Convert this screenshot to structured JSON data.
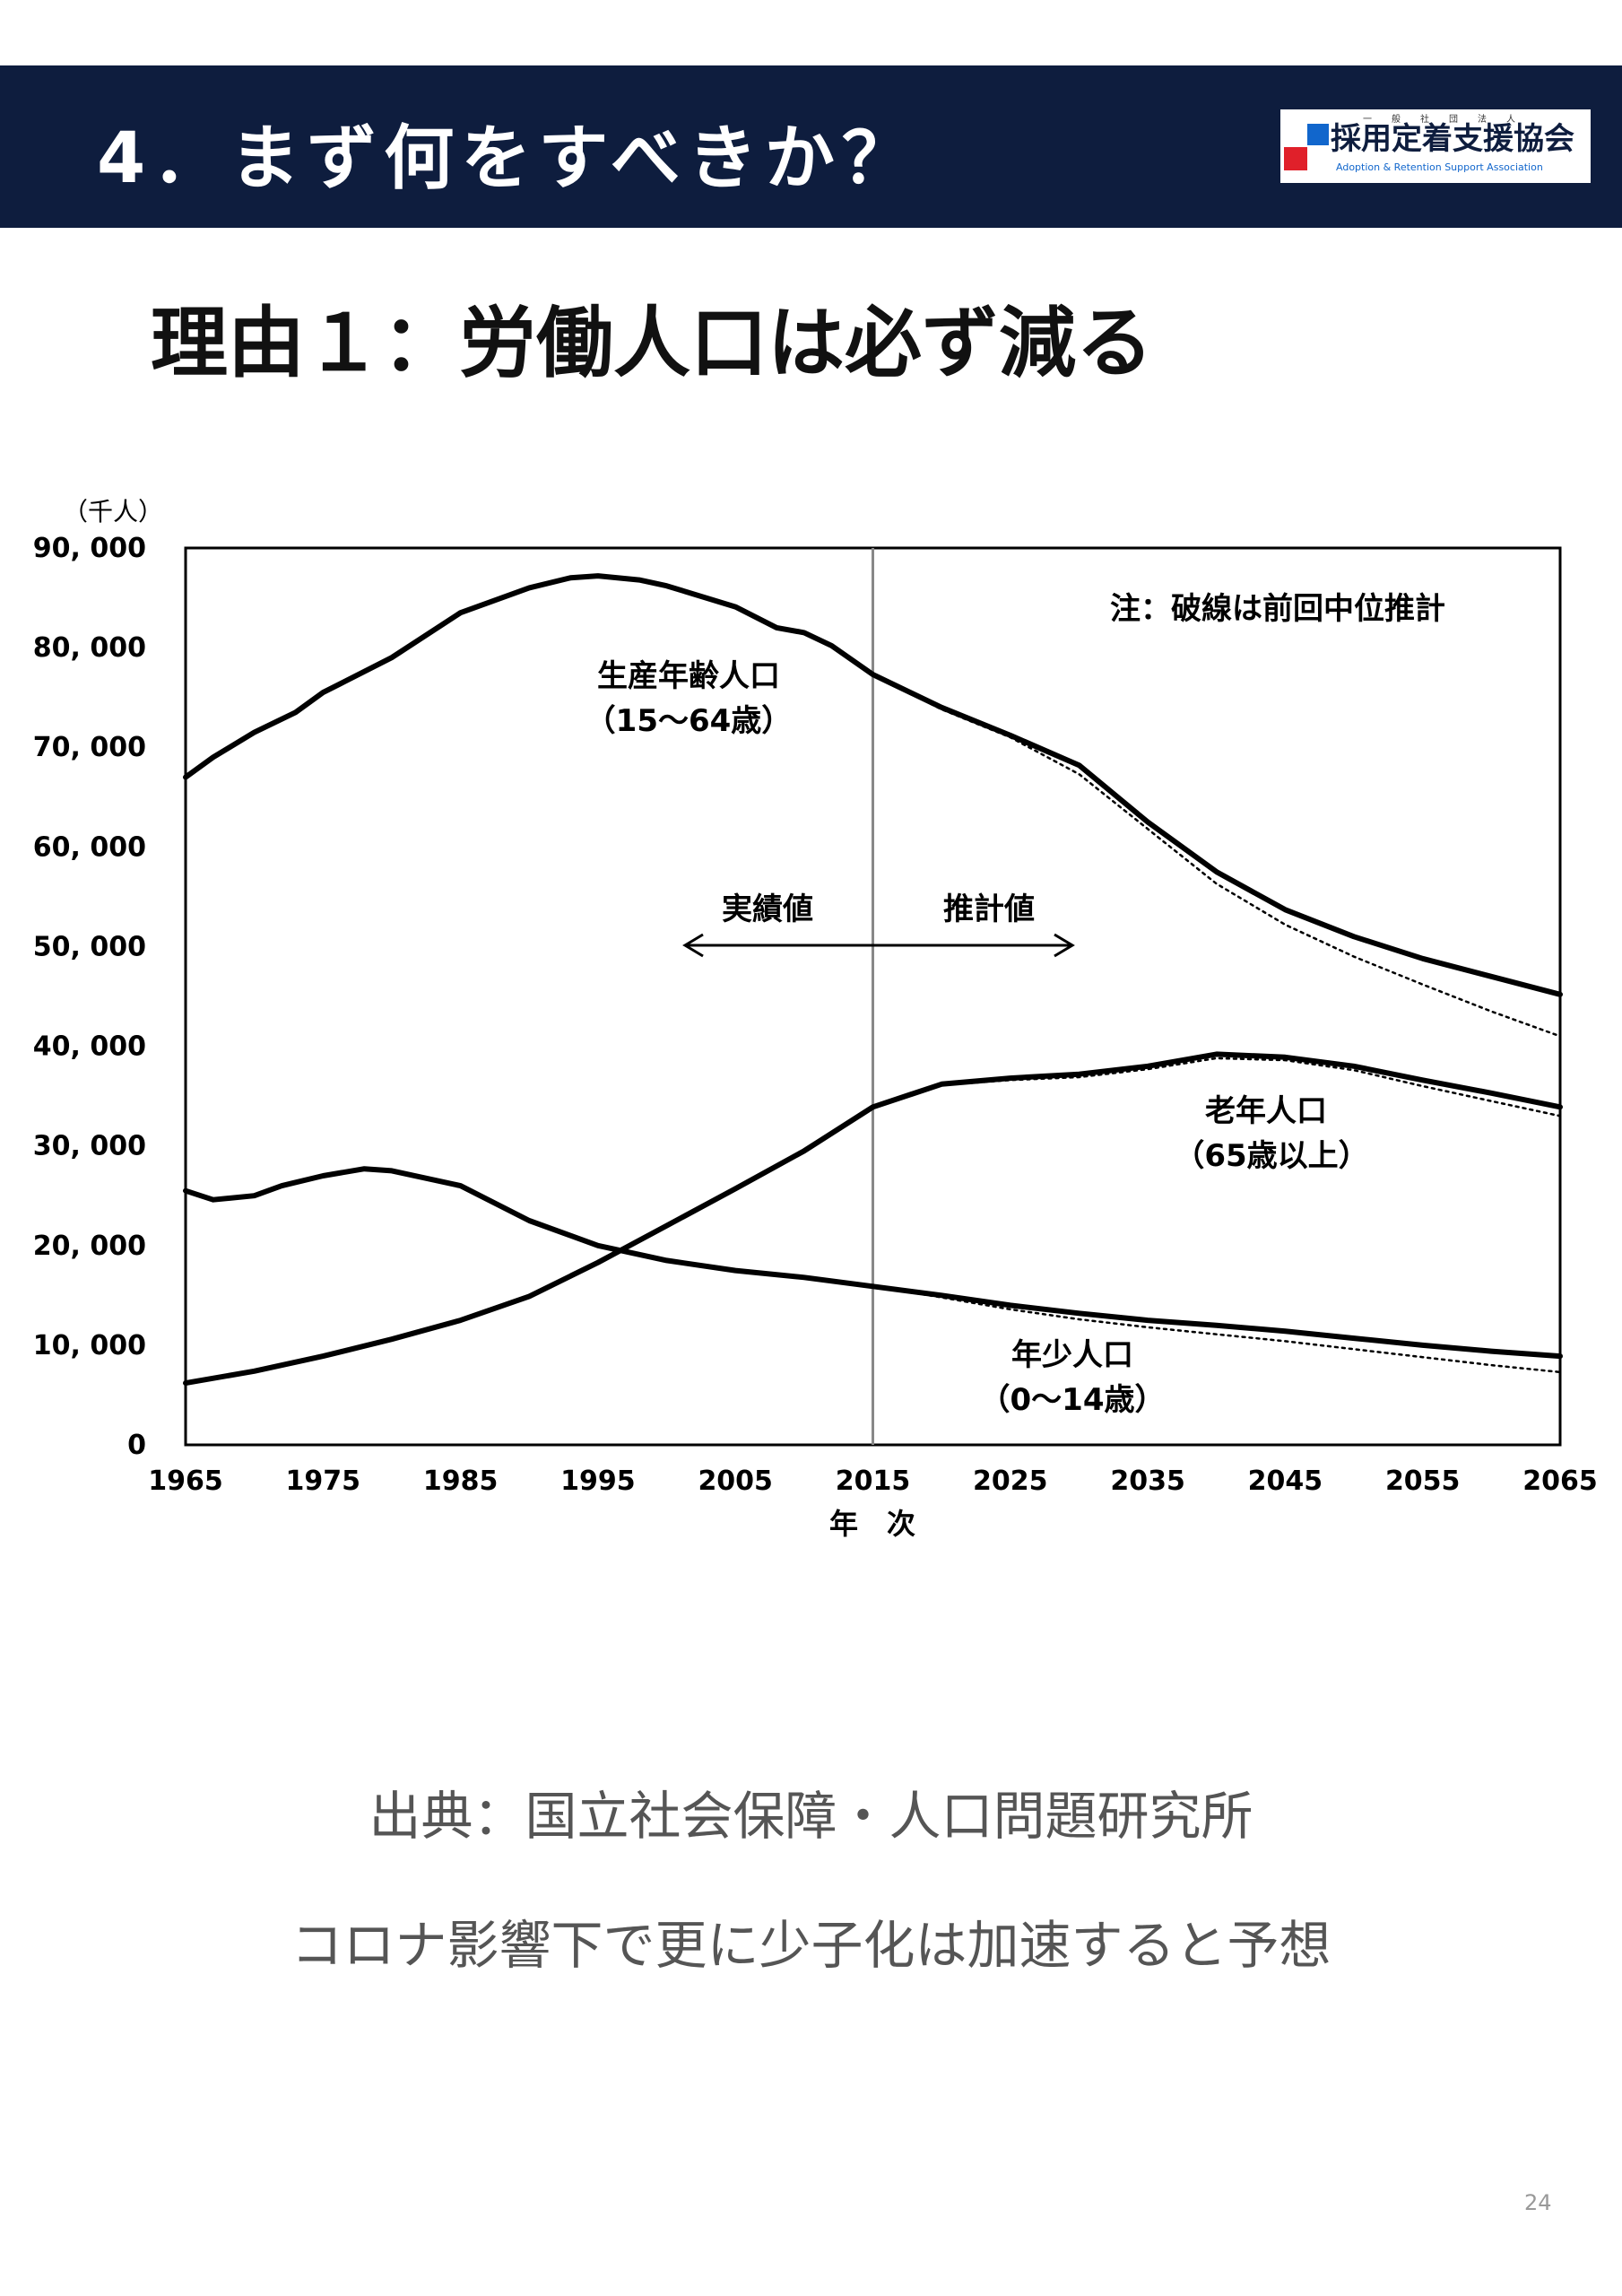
{
  "header": {
    "title": "4．まず何をすべきか？",
    "background": "#0e1d3e",
    "logo": {
      "top_text": "一般社団法人",
      "main_text": "採用定着支援協会",
      "sub_text": "Adoption & Retention Support Association",
      "colors": [
        "#1166cc",
        "#e0202a"
      ]
    }
  },
  "heading": "理由１：労働人口は必ず減る",
  "chart_data": {
    "type": "line",
    "y_unit_label": "（千人）",
    "xlabel": "年　次",
    "xlim": [
      1965,
      2065
    ],
    "ylim": [
      0,
      90000
    ],
    "x_ticks": [
      1965,
      1975,
      1985,
      1995,
      2005,
      2015,
      2025,
      2035,
      2045,
      2055,
      2065
    ],
    "x_tick_labels": [
      "1965",
      "1975",
      "1985",
      "1995",
      "2005",
      "2015",
      "2025",
      "2035",
      "2045",
      "2055",
      "2065"
    ],
    "y_ticks": [
      0,
      10000,
      20000,
      30000,
      40000,
      50000,
      60000,
      70000,
      80000,
      90000
    ],
    "y_tick_labels": [
      "0",
      "10, 000",
      "20, 000",
      "30, 000",
      "40, 000",
      "50, 000",
      "60, 000",
      "70, 000",
      "80, 000",
      "90, 000"
    ],
    "divider_year": 2015,
    "note": "注：破線は前回中位推計",
    "region_labels": {
      "actual": "実績値",
      "projected": "推計値"
    },
    "series": [
      {
        "name": "生産年齢人口",
        "range_label": "（15～64歳）",
        "style": "solid",
        "x": [
          1965,
          1967,
          1970,
          1973,
          1975,
          1980,
          1985,
          1990,
          1993,
          1995,
          1998,
          2000,
          2005,
          2008,
          2010,
          2012,
          2015,
          2020,
          2025,
          2030,
          2035,
          2040,
          2045,
          2050,
          2055,
          2060,
          2065
        ],
        "values": [
          67000,
          69000,
          71500,
          73500,
          75500,
          79000,
          83500,
          86000,
          87000,
          87200,
          86800,
          86200,
          84100,
          82000,
          81500,
          80200,
          77300,
          74000,
          71200,
          68200,
          62500,
          57500,
          53700,
          51000,
          48800,
          47000,
          45200
        ]
      },
      {
        "name": "生産年齢人口（前回推計）",
        "style": "dotted",
        "x": [
          2015,
          2020,
          2025,
          2030,
          2035,
          2040,
          2045,
          2050,
          2055,
          2060,
          2065
        ],
        "values": [
          77300,
          73800,
          71000,
          67300,
          61800,
          56300,
          52200,
          49000,
          46200,
          43500,
          41000
        ]
      },
      {
        "name": "老年人口",
        "range_label": "（65歳以上）",
        "style": "solid",
        "x": [
          1965,
          1970,
          1975,
          1980,
          1985,
          1990,
          1995,
          2000,
          2005,
          2010,
          2015,
          2020,
          2025,
          2030,
          2035,
          2040,
          2045,
          2050,
          2055,
          2060,
          2065
        ],
        "values": [
          6200,
          7400,
          8900,
          10600,
          12500,
          14900,
          18300,
          22000,
          25700,
          29500,
          33900,
          36200,
          36800,
          37200,
          38000,
          39200,
          38900,
          38000,
          36600,
          35300,
          33900
        ]
      },
      {
        "name": "老年人口（前回推計）",
        "style": "dotted",
        "x": [
          2015,
          2020,
          2025,
          2030,
          2035,
          2040,
          2045,
          2050,
          2055,
          2060,
          2065
        ],
        "values": [
          33900,
          36100,
          36600,
          36900,
          37700,
          38800,
          38600,
          37600,
          36000,
          34500,
          33000
        ]
      },
      {
        "name": "年少人口",
        "range_label": "（0～14歳）",
        "style": "solid",
        "x": [
          1965,
          1967,
          1970,
          1972,
          1975,
          1978,
          1980,
          1985,
          1990,
          1995,
          2000,
          2005,
          2010,
          2015,
          2020,
          2025,
          2030,
          2035,
          2040,
          2045,
          2050,
          2055,
          2060,
          2065
        ],
        "values": [
          25500,
          24600,
          25000,
          26000,
          27000,
          27700,
          27500,
          26000,
          22500,
          20000,
          18500,
          17500,
          16800,
          15900,
          15000,
          14000,
          13200,
          12500,
          12000,
          11400,
          10700,
          10000,
          9400,
          8900
        ]
      },
      {
        "name": "年少人口（前回推計）",
        "style": "dotted",
        "x": [
          2015,
          2020,
          2025,
          2030,
          2035,
          2040,
          2045,
          2050,
          2055,
          2060,
          2065
        ],
        "values": [
          15900,
          14800,
          13600,
          12600,
          11800,
          11100,
          10400,
          9600,
          8800,
          8000,
          7300
        ]
      }
    ]
  },
  "source_text": "出典：国立社会保障・人口問題研究所",
  "forecast_text": "コロナ影響下で更に少子化は加速すると予想",
  "page_number": "24"
}
